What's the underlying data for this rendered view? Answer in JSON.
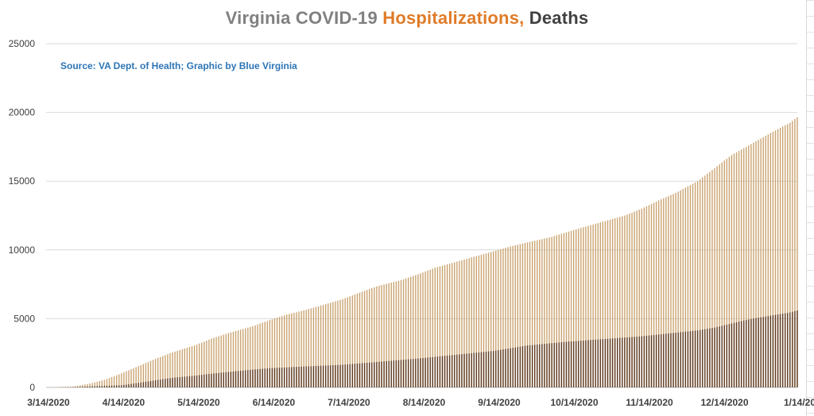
{
  "chart_data": {
    "type": "bar",
    "title_parts": [
      "Virginia COVID-19 ",
      "Hospitalizations, ",
      "Deaths"
    ],
    "source": "Source: VA Dept. of Health; Graphic by Blue Virginia",
    "x_tick_labels": [
      "3/14/2020",
      "4/14/2020",
      "5/14/2020",
      "6/14/2020",
      "7/14/2020",
      "8/14/2020",
      "9/14/2020",
      "10/14/2020",
      "11/14/2020",
      "12/14/2020",
      "1/14/20"
    ],
    "y_ticks": [
      "0",
      "5000",
      "10000",
      "15000",
      "20000",
      "25000"
    ],
    "ylim": [
      0,
      25000
    ],
    "x_range": [
      "2020-03-14",
      "2021-01-17"
    ],
    "grid": true,
    "series": [
      {
        "name": "Hospitalizations",
        "color": "#c9a26e",
        "points": [
          [
            "2020-03-14",
            0
          ],
          [
            "2020-03-25",
            60
          ],
          [
            "2020-04-01",
            280
          ],
          [
            "2020-04-07",
            550
          ],
          [
            "2020-04-14",
            1020
          ],
          [
            "2020-04-21",
            1550
          ],
          [
            "2020-04-28",
            2080
          ],
          [
            "2020-05-05",
            2550
          ],
          [
            "2020-05-14",
            3050
          ],
          [
            "2020-05-21",
            3550
          ],
          [
            "2020-05-28",
            3950
          ],
          [
            "2020-06-07",
            4450
          ],
          [
            "2020-06-14",
            4900
          ],
          [
            "2020-06-21",
            5300
          ],
          [
            "2020-06-28",
            5600
          ],
          [
            "2020-07-07",
            6050
          ],
          [
            "2020-07-14",
            6420
          ],
          [
            "2020-07-21",
            6900
          ],
          [
            "2020-07-28",
            7350
          ],
          [
            "2020-08-07",
            7800
          ],
          [
            "2020-08-14",
            8230
          ],
          [
            "2020-08-21",
            8700
          ],
          [
            "2020-08-28",
            9050
          ],
          [
            "2020-09-07",
            9550
          ],
          [
            "2020-09-14",
            9900
          ],
          [
            "2020-09-21",
            10250
          ],
          [
            "2020-09-28",
            10550
          ],
          [
            "2020-10-07",
            10900
          ],
          [
            "2020-10-14",
            11280
          ],
          [
            "2020-10-21",
            11650
          ],
          [
            "2020-10-28",
            12000
          ],
          [
            "2020-11-07",
            12500
          ],
          [
            "2020-11-14",
            13000
          ],
          [
            "2020-11-21",
            13600
          ],
          [
            "2020-11-28",
            14150
          ],
          [
            "2020-12-07",
            15000
          ],
          [
            "2020-12-14",
            15950
          ],
          [
            "2020-12-21",
            16900
          ],
          [
            "2020-12-28",
            17600
          ],
          [
            "2021-01-07",
            18600
          ],
          [
            "2021-01-14",
            19250
          ],
          [
            "2021-01-17",
            19650
          ]
        ]
      },
      {
        "name": "Deaths",
        "color": "#5c3a22",
        "points": [
          [
            "2020-03-14",
            0
          ],
          [
            "2020-03-25",
            20
          ],
          [
            "2020-04-01",
            70
          ],
          [
            "2020-04-14",
            160
          ],
          [
            "2020-04-21",
            330
          ],
          [
            "2020-04-28",
            520
          ],
          [
            "2020-05-05",
            700
          ],
          [
            "2020-05-14",
            850
          ],
          [
            "2020-05-21",
            1000
          ],
          [
            "2020-05-28",
            1120
          ],
          [
            "2020-06-07",
            1300
          ],
          [
            "2020-06-14",
            1400
          ],
          [
            "2020-06-28",
            1520
          ],
          [
            "2020-07-14",
            1650
          ],
          [
            "2020-07-28",
            1850
          ],
          [
            "2020-08-14",
            2100
          ],
          [
            "2020-08-28",
            2350
          ],
          [
            "2020-09-14",
            2650
          ],
          [
            "2020-09-28",
            3050
          ],
          [
            "2020-10-14",
            3320
          ],
          [
            "2020-10-28",
            3500
          ],
          [
            "2020-11-14",
            3720
          ],
          [
            "2020-11-28",
            3980
          ],
          [
            "2020-12-07",
            4150
          ],
          [
            "2020-12-14",
            4350
          ],
          [
            "2020-12-21",
            4650
          ],
          [
            "2020-12-28",
            4950
          ],
          [
            "2021-01-07",
            5250
          ],
          [
            "2021-01-14",
            5450
          ],
          [
            "2021-01-17",
            5600
          ]
        ]
      }
    ]
  }
}
